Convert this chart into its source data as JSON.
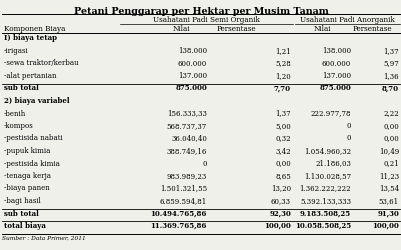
{
  "title": "Petani Penggarap per Hektar per Musim Tanam",
  "col_headers": [
    "Komponen Biaya",
    "Nilai",
    "Persentase",
    "Nilai",
    "Persentase"
  ],
  "group_headers": [
    "Usahatani Padi Semi Organik",
    "Usahatani Padi Anorganik"
  ],
  "rows": [
    [
      "I) biaya tetap",
      "",
      "",
      "",
      ""
    ],
    [
      "-irigasi",
      "138.000",
      "1,21",
      "138.000",
      "1,37"
    ],
    [
      "-sewa traktor/kerbau",
      "600.000",
      "5,28",
      "600.000",
      "5,97"
    ],
    [
      "-alat pertanian",
      "137.000",
      "1,20",
      "137.000",
      "1,36"
    ],
    [
      "sub total",
      "875.000",
      "7,70",
      "875.000",
      "8,70"
    ],
    [
      "2) biaya variabel",
      "",
      "",
      "",
      ""
    ],
    [
      "-benih",
      "156.333,33",
      "1,37",
      "222.977,78",
      "2,22"
    ],
    [
      "-kompos",
      "568.737,37",
      "5,00",
      "0",
      "0,00"
    ],
    [
      "-pestisida nabati",
      "36.040,40",
      "0,32",
      "0",
      "0,00"
    ],
    [
      "-pupuk kimia",
      "388.749,16",
      "3,42",
      "1.054.960,32",
      "10,49"
    ],
    [
      "-pestisida kimia",
      "0",
      "0,00",
      "21.186,03",
      "0,21"
    ],
    [
      "-tenaga kerja",
      "983.989,23",
      "8,65",
      "1.130.028,57",
      "11,23"
    ],
    [
      "-biaya panen",
      "1.501.321,55",
      "13,20",
      "1.362.222,222",
      "13,54"
    ],
    [
      "-bagi hasil",
      "6.859.594,81",
      "60,33",
      "5.392.133,333",
      "53,61"
    ],
    [
      "sub total",
      "10.494.765,86",
      "92,30",
      "9.183.508,25",
      "91,30"
    ],
    [
      "total biaya",
      "11.369.765,86",
      "100,00",
      "10.058.508,25",
      "100,00"
    ]
  ],
  "source": "Sumber : Data Primer, 2011",
  "bold_rows": [
    0,
    4,
    5,
    14,
    15
  ],
  "line_after_rows": [
    3,
    13,
    14
  ],
  "bg_color": "#f0f0eb"
}
